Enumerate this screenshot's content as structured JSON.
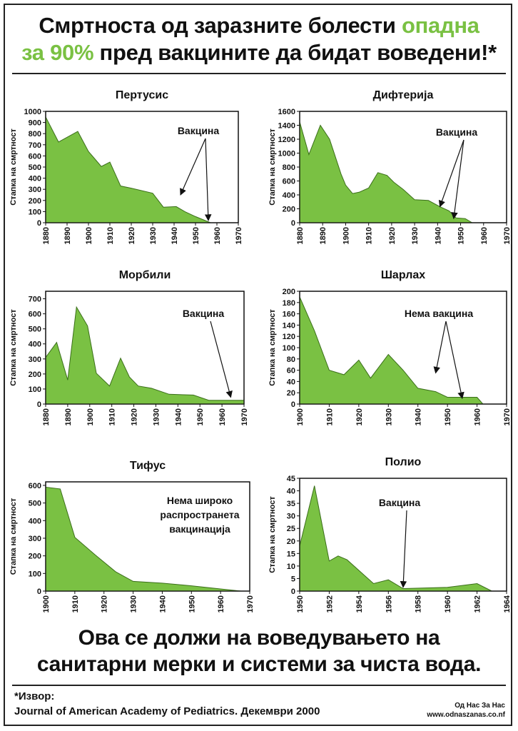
{
  "header": {
    "line1_a": "Смртноста од заразните болести ",
    "line1_b": "опадна",
    "line2_a": "за 90%",
    "line2_b": " пред вакцините да бидат воведени!*"
  },
  "footer": {
    "line1": "Ова се должи на воведувањето на",
    "line2": "санитарни мерки и системи за чиста вода.",
    "source_label": "*Извор:",
    "source_text": "Journal of American Academy of Pediatrics. Декември 2000",
    "brand_line1": "Од Нас За Нас",
    "brand_line2": "www.odnaszanas.co.nf"
  },
  "colors": {
    "fill": "#7ac143",
    "stroke": "#3a6e1a",
    "highlight": "#7ac143"
  },
  "chart_data": [
    {
      "type": "area",
      "title": "Пертусис",
      "ylabel": "Стапка на смртност",
      "xlim": [
        1880,
        1970
      ],
      "ylim": [
        0,
        1000
      ],
      "xticks": [
        1880,
        1890,
        1900,
        1910,
        1920,
        1930,
        1940,
        1950,
        1960,
        1970
      ],
      "yticks": [
        0,
        100,
        200,
        300,
        400,
        500,
        600,
        700,
        800,
        900,
        1000
      ],
      "x": [
        1880,
        1886,
        1895,
        1900,
        1906,
        1910,
        1915,
        1920,
        1930,
        1935,
        1941,
        1945,
        1950,
        1957
      ],
      "y": [
        950,
        725,
        820,
        640,
        505,
        545,
        330,
        310,
        265,
        140,
        145,
        100,
        55,
        0
      ],
      "annotation": {
        "text": "Вакцина",
        "arrows": [
          [
            1943,
            250
          ],
          [
            1956,
            20
          ]
        ]
      }
    },
    {
      "type": "area",
      "title": "Дифтерија",
      "ylabel": "Стапка на смртност",
      "xlim": [
        1880,
        1970
      ],
      "ylim": [
        0,
        1600
      ],
      "xticks": [
        1880,
        1890,
        1900,
        1910,
        1920,
        1930,
        1940,
        1950,
        1960,
        1970
      ],
      "yticks": [
        0,
        200,
        400,
        600,
        800,
        1000,
        1200,
        1400,
        1600
      ],
      "x": [
        1880,
        1884,
        1889,
        1893,
        1898,
        1900,
        1903,
        1906,
        1910,
        1914,
        1918,
        1921,
        1925,
        1930,
        1936,
        1941,
        1945,
        1948,
        1952,
        1955
      ],
      "y": [
        1450,
        980,
        1400,
        1200,
        700,
        540,
        420,
        440,
        500,
        720,
        680,
        580,
        480,
        330,
        320,
        230,
        170,
        70,
        60,
        0
      ],
      "annotation": {
        "text": "Вакцина",
        "arrows": [
          [
            1941,
            230
          ],
          [
            1947,
            60
          ]
        ]
      }
    },
    {
      "type": "area",
      "title": "Морбили",
      "ylabel": "Стапка на смртност",
      "xlim": [
        1880,
        1970
      ],
      "ylim": [
        0,
        750
      ],
      "xticks": [
        1880,
        1890,
        1900,
        1910,
        1920,
        1930,
        1940,
        1950,
        1960,
        1970
      ],
      "yticks": [
        0,
        100,
        200,
        300,
        400,
        500,
        600,
        700
      ],
      "x": [
        1880,
        1885,
        1890,
        1894,
        1899,
        1903,
        1909,
        1914,
        1918,
        1922,
        1928,
        1936,
        1947,
        1954,
        1970
      ],
      "y": [
        310,
        410,
        160,
        645,
        520,
        205,
        120,
        305,
        180,
        120,
        105,
        65,
        60,
        25,
        25
      ],
      "annotation": {
        "text": "Вакцина",
        "arrows": [
          [
            1964,
            45
          ]
        ]
      }
    },
    {
      "type": "area",
      "title": "Шарлах",
      "ylabel": "Стапка на смртност",
      "xlim": [
        1900,
        1970
      ],
      "ylim": [
        0,
        200
      ],
      "xticks": [
        1900,
        1910,
        1920,
        1930,
        1940,
        1950,
        1960,
        1970
      ],
      "yticks": [
        0,
        20,
        40,
        60,
        80,
        100,
        120,
        140,
        160,
        180,
        200
      ],
      "x": [
        1900,
        1905,
        1910,
        1915,
        1920,
        1924,
        1930,
        1935,
        1940,
        1946,
        1950,
        1960,
        1962
      ],
      "y": [
        190,
        130,
        60,
        52,
        78,
        46,
        88,
        60,
        28,
        22,
        12,
        12,
        0
      ],
      "annotation": {
        "text": "Нема вакцина",
        "arrows": [
          [
            1946,
            55
          ],
          [
            1955,
            10
          ]
        ]
      }
    },
    {
      "type": "area",
      "title": "Тифус",
      "ylabel": "Стапка на смртност",
      "xlim": [
        1900,
        1970
      ],
      "ylim": [
        0,
        620
      ],
      "xticks": [
        1900,
        1910,
        1920,
        1930,
        1940,
        1950,
        1960,
        1970
      ],
      "yticks": [
        0,
        100,
        200,
        300,
        400,
        500,
        600
      ],
      "x": [
        1900,
        1905,
        1910,
        1917,
        1924,
        1930,
        1940,
        1950,
        1960,
        1967
      ],
      "y": [
        590,
        580,
        305,
        205,
        110,
        55,
        45,
        30,
        12,
        0
      ],
      "annotation": {
        "text_lines": [
          "Нема широко",
          "распространета",
          "вакцинација"
        ]
      }
    },
    {
      "type": "area",
      "title": "Полио",
      "ylabel": "Стапка на смртност",
      "xlim": [
        1950,
        1964
      ],
      "ylim": [
        0,
        45
      ],
      "xticks": [
        1950,
        1952,
        1954,
        1956,
        1958,
        1960,
        1962,
        1964
      ],
      "yticks": [
        0,
        5,
        10,
        15,
        20,
        25,
        30,
        35,
        40,
        45
      ],
      "x": [
        1950,
        1951,
        1952,
        1952.6,
        1953.2,
        1955,
        1956,
        1957,
        1960,
        1962,
        1963
      ],
      "y": [
        18,
        42,
        12,
        14,
        12.5,
        3,
        4.5,
        1,
        1.5,
        3,
        0
      ],
      "annotation": {
        "text": "Вакцина",
        "arrows": [
          [
            1957,
            1.5
          ]
        ]
      }
    }
  ]
}
